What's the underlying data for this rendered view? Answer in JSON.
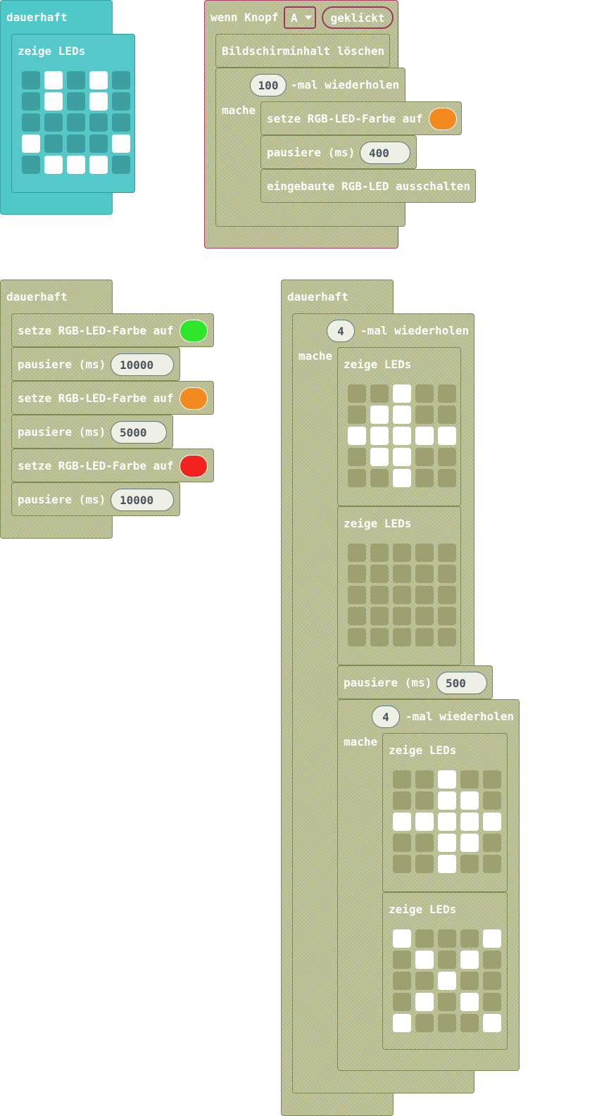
{
  "blocks": {
    "forever_label": "dauerhaft",
    "show_leds_label": "zeige LEDs",
    "set_rgb_label": "setze RGB-LED-Farbe auf",
    "pause_label": "pausiere (ms)",
    "repeat_suffix": "-mal wiederholen",
    "do_label": "mache",
    "button_event_label": "wenn Knopf",
    "button_value": "A",
    "button_action": "geklickt",
    "clear_screen_label": "Bildschirminhalt löschen",
    "rgb_off_label": "eingebaute RGB-LED ausschalten"
  },
  "colors": {
    "green": "#2ee62a",
    "orange": "#f28a1e",
    "red": "#f2231e"
  },
  "stack_top_left": {
    "leds": [
      [
        0,
        1,
        0,
        1,
        0
      ],
      [
        0,
        1,
        0,
        1,
        0
      ],
      [
        0,
        0,
        0,
        0,
        0
      ],
      [
        1,
        0,
        0,
        0,
        1
      ],
      [
        0,
        1,
        1,
        1,
        0
      ]
    ]
  },
  "stack_button": {
    "repeat_count": "100",
    "color": "orange",
    "pause": "400"
  },
  "stack_left": {
    "steps": [
      {
        "color": "green",
        "pause": "10000"
      },
      {
        "color": "orange",
        "pause": "5000"
      },
      {
        "color": "red",
        "pause": "10000"
      }
    ]
  },
  "stack_right": {
    "outer_repeat": "4",
    "inner_repeat": "4",
    "pause": "500",
    "leds_1": [
      [
        0,
        0,
        1,
        0,
        0
      ],
      [
        0,
        1,
        1,
        0,
        0
      ],
      [
        1,
        1,
        1,
        1,
        1
      ],
      [
        0,
        1,
        1,
        0,
        0
      ],
      [
        0,
        0,
        1,
        0,
        0
      ]
    ],
    "leds_2": [
      [
        0,
        0,
        0,
        0,
        0
      ],
      [
        0,
        0,
        0,
        0,
        0
      ],
      [
        0,
        0,
        0,
        0,
        0
      ],
      [
        0,
        0,
        0,
        0,
        0
      ],
      [
        0,
        0,
        0,
        0,
        0
      ]
    ],
    "leds_3": [
      [
        0,
        0,
        1,
        0,
        0
      ],
      [
        0,
        0,
        1,
        1,
        0
      ],
      [
        1,
        1,
        1,
        1,
        1
      ],
      [
        0,
        0,
        1,
        1,
        0
      ],
      [
        0,
        0,
        1,
        0,
        0
      ]
    ],
    "leds_4": [
      [
        1,
        0,
        0,
        0,
        1
      ],
      [
        0,
        1,
        0,
        1,
        0
      ],
      [
        0,
        0,
        1,
        0,
        0
      ],
      [
        0,
        1,
        0,
        1,
        0
      ],
      [
        1,
        0,
        0,
        0,
        1
      ]
    ]
  }
}
